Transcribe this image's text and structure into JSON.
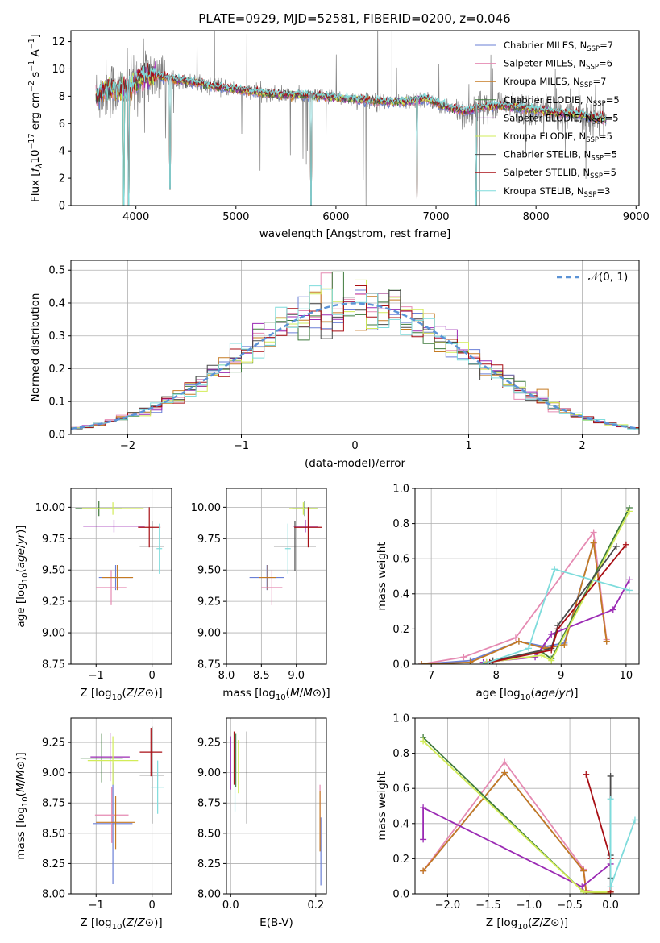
{
  "figure": {
    "title": "PLATE=0929, MJD=52581, FIBERID=0200, z=0.046"
  },
  "colors": {
    "Chabrier MILES": "#6a7fd6",
    "Salpeter MILES": "#e58ab2",
    "Kroupa MILES": "#c57a22",
    "Chabrier ELODIE": "#3f7a3c",
    "Salpeter ELODIE": "#9b2ab4",
    "Kroupa ELODIE": "#d2ec58",
    "Chabrier STELIB": "#4a4a4a",
    "Salpeter STELIB": "#a80f15",
    "Kroupa STELIB": "#7fdcdc",
    "data": "#808080",
    "normal": "#5b93d6"
  },
  "chart_data": [
    {
      "id": "spectrum",
      "type": "line",
      "title": "PLATE=0929, MJD=52581, FIBERID=0200, z=0.046",
      "xlabel": "wavelength [Angstrom, rest frame]",
      "ylabel": "Flux [f_λ 10^-17 erg cm^-2 s^-1 A^-1]",
      "xlim": [
        3350,
        9030
      ],
      "ylim": [
        0,
        12.8
      ],
      "xticks": [
        4000,
        5000,
        6000,
        7000,
        8000,
        9000
      ],
      "yticks": [
        0,
        2,
        4,
        6,
        8,
        10,
        12
      ],
      "grid": false,
      "legend_position": "top-right",
      "legend": [
        {
          "name": "Chabrier MILES",
          "label": "Chabrier MILES, N",
          "sub": "SSP",
          "tail": "=7"
        },
        {
          "name": "Salpeter MILES",
          "label": "Salpeter MILES, N",
          "sub": "SSP",
          "tail": "=6"
        },
        {
          "name": "Kroupa MILES",
          "label": "Kroupa MILES, N",
          "sub": "SSP",
          "tail": "=7"
        },
        {
          "name": "Chabrier ELODIE",
          "label": "Chabrier ELODIE, N",
          "sub": "SSP",
          "tail": "=5"
        },
        {
          "name": "Salpeter ELODIE",
          "label": "Salpeter ELODIE, N",
          "sub": "SSP",
          "tail": "=5"
        },
        {
          "name": "Kroupa ELODIE",
          "label": "Kroupa ELODIE, N",
          "sub": "SSP",
          "tail": "=5"
        },
        {
          "name": "Chabrier STELIB",
          "label": "Chabrier STELIB, N",
          "sub": "SSP",
          "tail": "=5"
        },
        {
          "name": "Salpeter STELIB",
          "label": "Salpeter STELIB, N",
          "sub": "SSP",
          "tail": "=5"
        },
        {
          "name": "Kroupa STELIB",
          "label": "Kroupa STELIB, N",
          "sub": "SSP",
          "tail": "=3"
        }
      ],
      "continuum": [
        [
          3600,
          8.0
        ],
        [
          3680,
          8.4
        ],
        [
          3750,
          8.6
        ],
        [
          3850,
          8.4
        ],
        [
          3950,
          8.7
        ],
        [
          4050,
          9.4
        ],
        [
          4200,
          9.5
        ],
        [
          4400,
          9.2
        ],
        [
          4600,
          9.0
        ],
        [
          4800,
          8.7
        ],
        [
          5000,
          8.5
        ],
        [
          5200,
          8.3
        ],
        [
          5400,
          8.1
        ],
        [
          5600,
          8.1
        ],
        [
          5800,
          8.0
        ],
        [
          6000,
          7.9
        ],
        [
          6300,
          7.7
        ],
        [
          6500,
          7.6
        ],
        [
          6700,
          7.6
        ],
        [
          6900,
          7.8
        ],
        [
          7100,
          7.2
        ],
        [
          7300,
          6.9
        ],
        [
          7450,
          7.2
        ],
        [
          7600,
          7.3
        ],
        [
          7800,
          7.2
        ],
        [
          8000,
          7.0
        ],
        [
          8200,
          6.8
        ],
        [
          8400,
          6.7
        ],
        [
          8600,
          6.4
        ],
        [
          8700,
          6.3
        ]
      ],
      "model_dips": [
        [
          3880,
          0
        ],
        [
          3925,
          0
        ],
        [
          4340,
          1.2
        ],
        [
          5750,
          0
        ],
        [
          6810,
          0
        ],
        [
          7400,
          0
        ]
      ]
    },
    {
      "id": "residuals",
      "type": "line",
      "xlabel": "(data-model)/error",
      "ylabel": "Normed distribution",
      "xlim": [
        -2.5,
        2.5
      ],
      "ylim": [
        0,
        0.53
      ],
      "xticks": [
        -2,
        -1,
        0,
        1,
        2
      ],
      "yticks": [
        0.0,
        0.1,
        0.2,
        0.3,
        0.4,
        0.5
      ],
      "grid": true,
      "legend_position": "top-right",
      "legend": [
        {
          "name": "normal",
          "label": "𝒩(0, 1)"
        }
      ],
      "bin_width": 0.1
    },
    {
      "id": "age_vs_Z",
      "type": "scatter",
      "xlabel": "Z [log10(Z/Z⊙)]",
      "ylabel": "age [log10(age/yr)]",
      "xlim": [
        -1.45,
        0.35
      ],
      "ylim": [
        8.75,
        10.15
      ],
      "xticks": [
        -1,
        0
      ],
      "yticks": [
        8.75,
        9.0,
        9.25,
        9.5,
        9.75,
        10.0
      ],
      "grid": true,
      "points": [
        {
          "series": "Chabrier MILES",
          "x": -0.65,
          "y": 9.44,
          "xerr": 0.3,
          "yerr": 0.1
        },
        {
          "series": "Salpeter MILES",
          "x": -0.73,
          "y": 9.36,
          "xerr": 0.27,
          "yerr": 0.14
        },
        {
          "series": "Kroupa MILES",
          "x": -0.62,
          "y": 9.44,
          "xerr": 0.28,
          "yerr": 0.1
        },
        {
          "series": "Chabrier ELODIE",
          "x": -0.95,
          "y": 9.99,
          "xerr": 0.42,
          "yerr": 0.06
        },
        {
          "series": "Salpeter ELODIE",
          "x": -0.68,
          "y": 9.85,
          "xerr": 0.55,
          "yerr": 0.05
        },
        {
          "series": "Kroupa ELODIE",
          "x": -0.7,
          "y": 9.99,
          "xerr": 0.55,
          "yerr": 0.05
        },
        {
          "series": "Chabrier STELIB",
          "x": 0.0,
          "y": 9.69,
          "xerr": 0.22,
          "yerr": 0.2
        },
        {
          "series": "Salpeter STELIB",
          "x": -0.05,
          "y": 9.84,
          "xerr": 0.2,
          "yerr": 0.16
        },
        {
          "series": "Kroupa STELIB",
          "x": 0.13,
          "y": 9.67,
          "xerr": 0.05,
          "yerr": 0.2
        }
      ]
    },
    {
      "id": "age_vs_mass",
      "type": "scatter",
      "xlabel": "mass [log10(M/M⊙)]",
      "ylabel": "",
      "xlim": [
        8.0,
        9.43
      ],
      "ylim": [
        8.75,
        10.15
      ],
      "xticks": [
        8.0,
        8.5,
        9.0
      ],
      "yticks": [
        8.75,
        9.0,
        9.25,
        9.5,
        9.75,
        10.0
      ],
      "grid": true,
      "points": [
        {
          "series": "Chabrier MILES",
          "x": 8.58,
          "y": 9.44,
          "xerr": 0.25,
          "yerr": 0.1
        },
        {
          "series": "Salpeter MILES",
          "x": 8.65,
          "y": 9.36,
          "xerr": 0.15,
          "yerr": 0.14
        },
        {
          "series": "Kroupa MILES",
          "x": 8.59,
          "y": 9.44,
          "xerr": 0.12,
          "yerr": 0.1
        },
        {
          "series": "Chabrier ELODIE",
          "x": 9.12,
          "y": 9.99,
          "xerr": 0.18,
          "yerr": 0.06
        },
        {
          "series": "Salpeter ELODIE",
          "x": 9.13,
          "y": 9.85,
          "xerr": 0.18,
          "yerr": 0.05
        },
        {
          "series": "Kroupa ELODIE",
          "x": 9.1,
          "y": 9.99,
          "xerr": 0.2,
          "yerr": 0.05
        },
        {
          "series": "Chabrier STELIB",
          "x": 8.98,
          "y": 9.69,
          "xerr": 0.3,
          "yerr": 0.2
        },
        {
          "series": "Salpeter STELIB",
          "x": 9.17,
          "y": 9.84,
          "xerr": 0.2,
          "yerr": 0.16
        },
        {
          "series": "Kroupa STELIB",
          "x": 8.88,
          "y": 9.67,
          "xerr": 0.04,
          "yerr": 0.2
        }
      ]
    },
    {
      "id": "weight_vs_age",
      "type": "line",
      "xlabel": "age [log10(age/yr)]",
      "ylabel": "mass weight",
      "xlim": [
        6.75,
        10.2
      ],
      "ylim": [
        0.0,
        1.0
      ],
      "xticks": [
        7,
        8,
        9,
        10
      ],
      "yticks": [
        0.0,
        0.2,
        0.4,
        0.6,
        0.8,
        1.0
      ],
      "grid": true,
      "series": [
        {
          "name": "Chabrier MILES",
          "x": [
            6.85,
            7.6,
            8.35,
            8.75,
            9.05,
            9.5,
            9.7
          ],
          "y": [
            0.0,
            0.02,
            0.13,
            0.1,
            0.12,
            0.69,
            0.13
          ]
        },
        {
          "name": "Salpeter MILES",
          "x": [
            6.85,
            7.5,
            8.3,
            9.5,
            9.7
          ],
          "y": [
            0.0,
            0.04,
            0.15,
            0.75,
            0.14
          ]
        },
        {
          "name": "Kroupa MILES",
          "x": [
            6.85,
            7.6,
            8.35,
            8.75,
            9.05,
            9.5,
            9.7
          ],
          "y": [
            0.0,
            0.01,
            0.13,
            0.09,
            0.11,
            0.69,
            0.13
          ]
        },
        {
          "name": "Chabrier ELODIE",
          "x": [
            7.85,
            8.7,
            8.85,
            10.05
          ],
          "y": [
            0.01,
            0.07,
            0.03,
            0.89
          ]
        },
        {
          "name": "Salpeter ELODIE",
          "x": [
            7.8,
            8.6,
            8.85,
            9.8,
            10.05
          ],
          "y": [
            0.01,
            0.04,
            0.17,
            0.31,
            0.48
          ]
        },
        {
          "name": "Kroupa ELODIE",
          "x": [
            7.85,
            8.7,
            8.85,
            10.05
          ],
          "y": [
            0.01,
            0.05,
            0.02,
            0.87
          ]
        },
        {
          "name": "Chabrier STELIB",
          "x": [
            7.95,
            8.85,
            8.95,
            9.85
          ],
          "y": [
            0.02,
            0.09,
            0.22,
            0.67
          ]
        },
        {
          "name": "Salpeter STELIB",
          "x": [
            7.9,
            8.85,
            8.95,
            10.0
          ],
          "y": [
            0.01,
            0.08,
            0.2,
            0.68
          ]
        },
        {
          "name": "Kroupa STELIB",
          "x": [
            7.8,
            8.5,
            8.9,
            10.05
          ],
          "y": [
            0.0,
            0.09,
            0.54,
            0.42
          ]
        }
      ]
    },
    {
      "id": "mass_vs_Z",
      "type": "scatter",
      "xlabel": "Z [log10(Z/Z⊙)]",
      "ylabel": "mass [log10(M/M⊙)]",
      "xlim": [
        -1.45,
        0.35
      ],
      "ylim": [
        8.0,
        9.45
      ],
      "xticks": [
        -1,
        0
      ],
      "yticks": [
        8.0,
        8.25,
        8.5,
        8.75,
        9.0,
        9.25
      ],
      "grid": true,
      "points": [
        {
          "series": "Chabrier MILES",
          "x": -0.7,
          "y": 8.58,
          "xerr": 0.35,
          "yerr": 0.5
        },
        {
          "series": "Salpeter MILES",
          "x": -0.72,
          "y": 8.65,
          "xerr": 0.3,
          "yerr": 0.23
        },
        {
          "series": "Kroupa MILES",
          "x": -0.65,
          "y": 8.59,
          "xerr": 0.35,
          "yerr": 0.22
        },
        {
          "series": "Chabrier ELODIE",
          "x": -0.9,
          "y": 9.12,
          "xerr": 0.38,
          "yerr": 0.2
        },
        {
          "series": "Salpeter ELODIE",
          "x": -0.75,
          "y": 9.13,
          "xerr": 0.35,
          "yerr": 0.2
        },
        {
          "series": "Kroupa ELODIE",
          "x": -0.7,
          "y": 9.1,
          "xerr": 0.45,
          "yerr": 0.2
        },
        {
          "series": "Chabrier STELIB",
          "x": 0.0,
          "y": 8.98,
          "xerr": 0.22,
          "yerr": 0.4
        },
        {
          "series": "Salpeter STELIB",
          "x": -0.02,
          "y": 9.17,
          "xerr": 0.2,
          "yerr": 0.2
        },
        {
          "series": "Kroupa STELIB",
          "x": 0.1,
          "y": 8.88,
          "xerr": 0.12,
          "yerr": 0.22
        }
      ]
    },
    {
      "id": "mass_vs_EBV",
      "type": "scatter",
      "xlabel": "E(B-V)",
      "ylabel": "",
      "xlim": [
        -0.01,
        0.225
      ],
      "ylim": [
        8.0,
        9.45
      ],
      "xticks": [
        0.0,
        0.2
      ],
      "yticks": [
        8.0,
        8.25,
        8.5,
        8.75,
        9.0,
        9.25
      ],
      "grid": true,
      "points": [
        {
          "series": "Chabrier MILES",
          "x": 0.212,
          "y": 8.35,
          "xerr": 0.0,
          "yerr": 0.28
        },
        {
          "series": "Salpeter MILES",
          "x": 0.21,
          "y": 8.65,
          "xerr": 0.0,
          "yerr": 0.25
        },
        {
          "series": "Kroupa MILES",
          "x": 0.21,
          "y": 8.6,
          "xerr": 0.0,
          "yerr": 0.25
        },
        {
          "series": "Chabrier ELODIE",
          "x": 0.012,
          "y": 9.1,
          "xerr": 0.0,
          "yerr": 0.22
        },
        {
          "series": "Salpeter ELODIE",
          "x": 0.0,
          "y": 9.08,
          "xerr": 0.0,
          "yerr": 0.22
        },
        {
          "series": "Kroupa ELODIE",
          "x": 0.018,
          "y": 9.05,
          "xerr": 0.0,
          "yerr": 0.22
        },
        {
          "series": "Chabrier STELIB",
          "x": 0.038,
          "y": 8.96,
          "xerr": 0.0,
          "yerr": 0.38
        },
        {
          "series": "Salpeter STELIB",
          "x": 0.008,
          "y": 9.12,
          "xerr": 0.0,
          "yerr": 0.22
        },
        {
          "series": "Kroupa STELIB",
          "x": 0.01,
          "y": 9.0,
          "xerr": 0.0,
          "yerr": 0.32
        }
      ]
    },
    {
      "id": "weight_vs_Z",
      "type": "line",
      "xlabel": "Z [log10(Z/Z⊙)]",
      "ylabel": "mass weight",
      "xlim": [
        -2.4,
        0.35
      ],
      "ylim": [
        0.0,
        1.0
      ],
      "xticks": [
        -2.0,
        -1.5,
        -1.0,
        -0.5,
        0.0
      ],
      "yticks": [
        0.0,
        0.2,
        0.4,
        0.6,
        0.8,
        1.0
      ],
      "grid": true,
      "series": [
        {
          "name": "Chabrier MILES",
          "x": [
            -2.3,
            -1.3,
            -0.33,
            -0.3,
            0.0
          ],
          "y": [
            0.13,
            0.69,
            0.13,
            0.02,
            0.0
          ]
        },
        {
          "name": "Salpeter MILES",
          "x": [
            -2.3,
            -1.3,
            -0.33,
            -0.3,
            0.0
          ],
          "y": [
            0.13,
            0.75,
            0.14,
            0.02,
            0.0
          ]
        },
        {
          "name": "Kroupa MILES",
          "x": [
            -2.3,
            -1.3,
            -0.33,
            -0.3,
            0.0
          ],
          "y": [
            0.13,
            0.69,
            0.13,
            0.01,
            0.0
          ]
        },
        {
          "name": "Chabrier ELODIE",
          "x": [
            -2.3,
            -0.33,
            0.0
          ],
          "y": [
            0.89,
            0.01,
            0.01
          ]
        },
        {
          "name": "Salpeter ELODIE",
          "x": [
            -2.3,
            -2.3,
            -0.35,
            0.0
          ],
          "y": [
            0.31,
            0.49,
            0.04,
            0.17
          ]
        },
        {
          "name": "Kroupa ELODIE",
          "x": [
            -2.3,
            -0.33,
            0.0
          ],
          "y": [
            0.87,
            0.01,
            0.01
          ]
        },
        {
          "name": "Chabrier STELIB",
          "x": [
            0.0,
            0.0,
            0.0
          ],
          "y": [
            0.67,
            0.22,
            0.09
          ]
        },
        {
          "name": "Salpeter STELIB",
          "x": [
            -0.3,
            0.0,
            0.0
          ],
          "y": [
            0.68,
            0.2,
            0.01
          ]
        },
        {
          "name": "Kroupa STELIB",
          "x": [
            0.3,
            0.0,
            0.0
          ],
          "y": [
            0.42,
            0.04,
            0.54
          ]
        }
      ]
    }
  ]
}
